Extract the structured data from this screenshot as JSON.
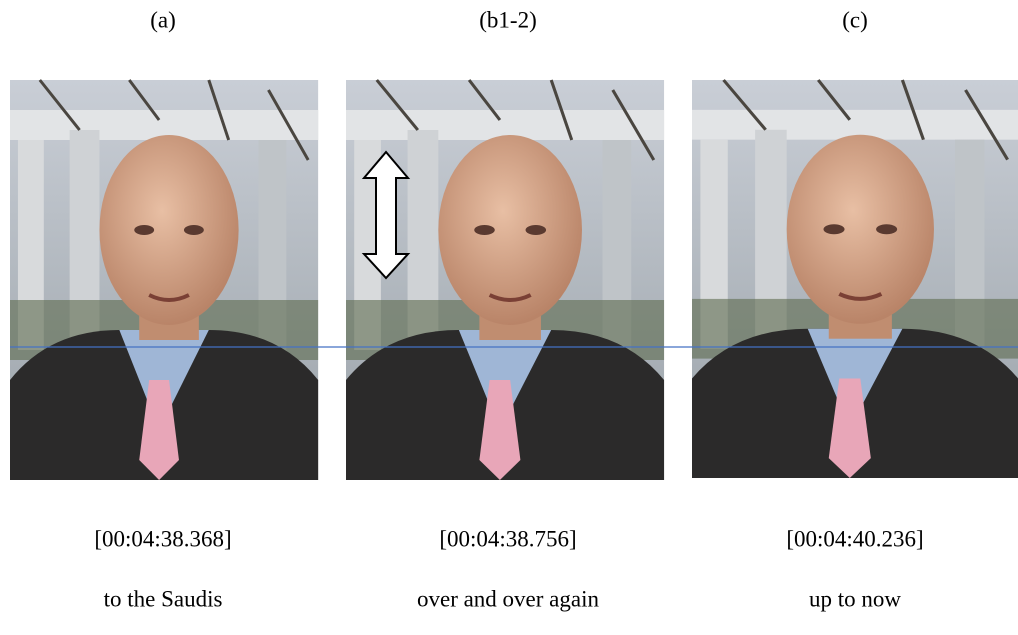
{
  "panels": [
    {
      "label": "(a)",
      "timestamp": "[00:04:38.368]",
      "caption": "to the Saudis"
    },
    {
      "label": "(b1-2)",
      "timestamp": "[00:04:38.756]",
      "caption": "over and over again"
    },
    {
      "label": "(c)",
      "timestamp": "[00:04:40.236]",
      "caption": "up to now"
    }
  ]
}
